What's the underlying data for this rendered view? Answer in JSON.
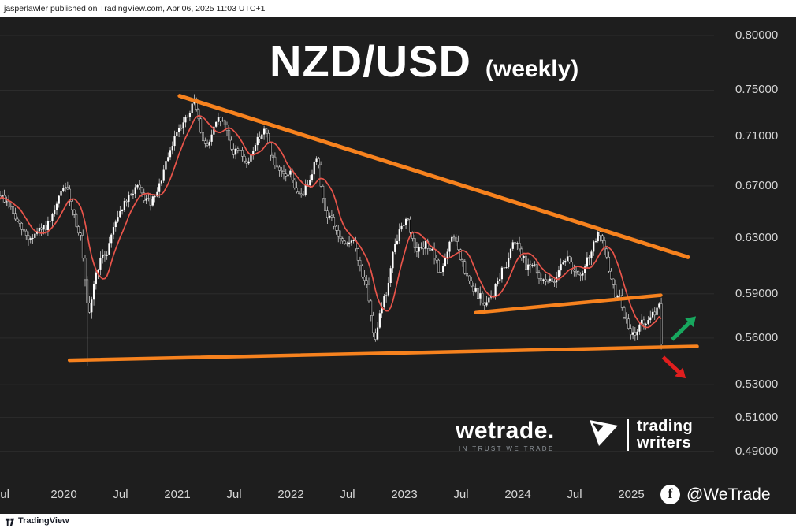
{
  "attribution_bar": {
    "text": "jasperlawler published on TradingView.com, Apr 06, 2025 11:03 UTC+1"
  },
  "title": {
    "symbol": "NZD/USD",
    "timeframe": "(weekly)"
  },
  "watermarks": {
    "wetrade": {
      "brand": "wetrade.",
      "tagline": "IN TRUST WE TRADE"
    },
    "trading_writers": {
      "line1": "trading",
      "line2": "writers"
    }
  },
  "social": {
    "icon_letter": "f",
    "handle": "@WeTrade"
  },
  "footer": {
    "brand": "TradingView"
  },
  "colors": {
    "background": "#1e1e1e",
    "grid": "#2c2c2c",
    "axis_text": "#d6d6d6",
    "candle_up": "#ffffff",
    "candle_down": "#0d0d0d",
    "candle_down_stroke": "#dcdcdc",
    "wick": "#e4e4e4",
    "trendline_orange": "#f7821e",
    "ma_red": "#e8544a",
    "bull_green": "#17a75e",
    "bear_red": "#e01e1e"
  },
  "chart_data": {
    "type": "candlestick",
    "title": "NZD/USD (weekly)",
    "symbol": "NZD/USD",
    "interval": "weekly",
    "y_scale": "log",
    "x_unit": "decimal_year",
    "x_range": [
      2019.44,
      2025.65
    ],
    "y_range": [
      0.478,
      0.81
    ],
    "t_start": 2019.4375,
    "t_end": 2025.27,
    "y_axis": [
      "0.80000",
      "0.75000",
      "0.71000",
      "0.67000",
      "0.63000",
      "0.59000",
      "0.56000",
      "0.53000",
      "0.51000",
      "0.49000"
    ],
    "x_axis": [
      {
        "label": "ul",
        "t": 2019.48
      },
      {
        "label": "2020",
        "t": 2020.0
      },
      {
        "label": "Jul",
        "t": 2020.5
      },
      {
        "label": "2021",
        "t": 2021.0
      },
      {
        "label": "Jul",
        "t": 2021.5
      },
      {
        "label": "2022",
        "t": 2022.0
      },
      {
        "label": "Jul",
        "t": 2022.5
      },
      {
        "label": "2023",
        "t": 2023.0
      },
      {
        "label": "Jul",
        "t": 2023.5
      },
      {
        "label": "2024",
        "t": 2024.0
      },
      {
        "label": "Jul",
        "t": 2024.5
      },
      {
        "label": "2025",
        "t": 2025.0
      }
    ],
    "price_path": [
      [
        2019.44,
        0.662
      ],
      [
        2019.52,
        0.655
      ],
      [
        2019.58,
        0.643
      ],
      [
        2019.64,
        0.635
      ],
      [
        2019.7,
        0.629
      ],
      [
        2019.76,
        0.634
      ],
      [
        2019.82,
        0.637
      ],
      [
        2019.88,
        0.641
      ],
      [
        2019.94,
        0.655
      ],
      [
        2019.99,
        0.67
      ],
      [
        2020.04,
        0.664
      ],
      [
        2020.1,
        0.644
      ],
      [
        2020.15,
        0.63
      ],
      [
        2020.19,
        0.595
      ],
      [
        2020.22,
        0.571
      ],
      [
        2020.26,
        0.596
      ],
      [
        2020.31,
        0.612
      ],
      [
        2020.38,
        0.62
      ],
      [
        2020.45,
        0.643
      ],
      [
        2020.52,
        0.654
      ],
      [
        2020.58,
        0.661
      ],
      [
        2020.64,
        0.67
      ],
      [
        2020.7,
        0.661
      ],
      [
        2020.76,
        0.656
      ],
      [
        2020.82,
        0.663
      ],
      [
        2020.88,
        0.682
      ],
      [
        2020.94,
        0.698
      ],
      [
        2021.0,
        0.717
      ],
      [
        2021.06,
        0.722
      ],
      [
        2021.11,
        0.73
      ],
      [
        2021.15,
        0.742
      ],
      [
        2021.2,
        0.716
      ],
      [
        2021.26,
        0.7
      ],
      [
        2021.32,
        0.716
      ],
      [
        2021.37,
        0.726
      ],
      [
        2021.43,
        0.718
      ],
      [
        2021.49,
        0.696
      ],
      [
        2021.55,
        0.701
      ],
      [
        2021.61,
        0.685
      ],
      [
        2021.67,
        0.701
      ],
      [
        2021.72,
        0.71
      ],
      [
        2021.77,
        0.716
      ],
      [
        2021.83,
        0.694
      ],
      [
        2021.89,
        0.68
      ],
      [
        2021.95,
        0.678
      ],
      [
        2022.0,
        0.681
      ],
      [
        2022.06,
        0.661
      ],
      [
        2022.12,
        0.666
      ],
      [
        2022.18,
        0.68
      ],
      [
        2022.23,
        0.694
      ],
      [
        2022.3,
        0.65
      ],
      [
        2022.36,
        0.644
      ],
      [
        2022.42,
        0.631
      ],
      [
        2022.48,
        0.623
      ],
      [
        2022.54,
        0.631
      ],
      [
        2022.6,
        0.611
      ],
      [
        2022.66,
        0.598
      ],
      [
        2022.71,
        0.571
      ],
      [
        2022.74,
        0.559
      ],
      [
        2022.79,
        0.58
      ],
      [
        2022.85,
        0.592
      ],
      [
        2022.9,
        0.618
      ],
      [
        2022.96,
        0.636
      ],
      [
        2023.02,
        0.647
      ],
      [
        2023.08,
        0.626
      ],
      [
        2023.14,
        0.62
      ],
      [
        2023.2,
        0.626
      ],
      [
        2023.26,
        0.617
      ],
      [
        2023.31,
        0.604
      ],
      [
        2023.37,
        0.616
      ],
      [
        2023.43,
        0.634
      ],
      [
        2023.49,
        0.616
      ],
      [
        2023.55,
        0.601
      ],
      [
        2023.61,
        0.592
      ],
      [
        2023.66,
        0.589
      ],
      [
        2023.71,
        0.581
      ],
      [
        2023.78,
        0.59
      ],
      [
        2023.85,
        0.604
      ],
      [
        2023.91,
        0.613
      ],
      [
        2023.96,
        0.63
      ],
      [
        2024.01,
        0.624
      ],
      [
        2024.07,
        0.61
      ],
      [
        2024.13,
        0.612
      ],
      [
        2024.19,
        0.599
      ],
      [
        2024.25,
        0.601
      ],
      [
        2024.31,
        0.596
      ],
      [
        2024.37,
        0.611
      ],
      [
        2024.43,
        0.616
      ],
      [
        2024.49,
        0.607
      ],
      [
        2024.55,
        0.6
      ],
      [
        2024.61,
        0.613
      ],
      [
        2024.67,
        0.626
      ],
      [
        2024.71,
        0.634
      ],
      [
        2024.76,
        0.622
      ],
      [
        2024.81,
        0.605
      ],
      [
        2024.86,
        0.589
      ],
      [
        2024.91,
        0.586
      ],
      [
        2024.95,
        0.572
      ],
      [
        2025.0,
        0.56
      ],
      [
        2025.05,
        0.566
      ],
      [
        2025.1,
        0.571
      ],
      [
        2025.14,
        0.568
      ],
      [
        2025.18,
        0.574
      ],
      [
        2025.22,
        0.58
      ],
      [
        2025.25,
        0.584
      ],
      [
        2025.27,
        0.556
      ]
    ],
    "key_extremes": [
      {
        "t": 2020.21,
        "low": 0.542
      },
      {
        "t": 2021.15,
        "high": 0.7465
      },
      {
        "t": 2025.26,
        "low": 0.5525
      }
    ],
    "moving_average": {
      "type": "SMA",
      "window": 10,
      "color": "#e8544a"
    },
    "trendlines": [
      {
        "name": "descending-resistance",
        "from": [
          2021.02,
          0.745
        ],
        "to": [
          2025.5,
          0.616
        ],
        "color": "#f7821e",
        "width": 5
      },
      {
        "name": "long-term-support",
        "from": [
          2020.05,
          0.5455
        ],
        "to": [
          2025.58,
          0.5545
        ],
        "color": "#f7821e",
        "width": 4.5
      },
      {
        "name": "short-term-rising-support",
        "from": [
          2023.63,
          0.577
        ],
        "to": [
          2025.26,
          0.589
        ],
        "color": "#f7821e",
        "width": 4.5
      }
    ],
    "annotations": [
      {
        "name": "bullish-arrow",
        "from": [
          2025.36,
          0.559
        ],
        "to": [
          2025.57,
          0.5745
        ],
        "color": "#17a75e"
      },
      {
        "name": "bearish-arrow",
        "from": [
          2025.28,
          0.5475
        ],
        "to": [
          2025.48,
          0.534
        ],
        "color": "#e01e1e"
      }
    ]
  }
}
